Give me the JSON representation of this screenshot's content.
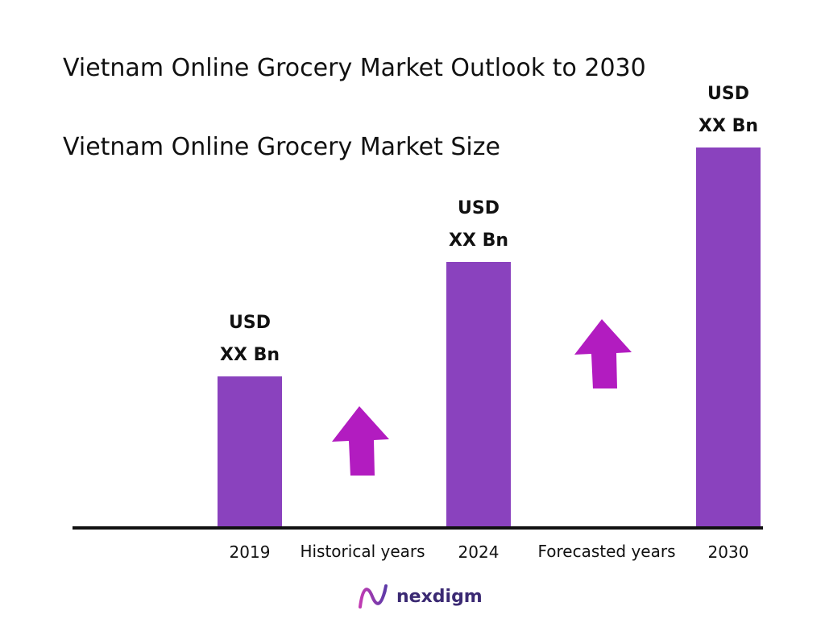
{
  "chart_data": {
    "type": "bar",
    "title": "Vietnam Online Grocery Market Outlook to 2030",
    "subtitle": "Vietnam Online Grocery Market Size",
    "categories": [
      "2019",
      "2024",
      "2030"
    ],
    "values": [
      2.5,
      4.4,
      6.3
    ],
    "value_labels": [
      {
        "line1": "USD",
        "line2": "XX Bn"
      },
      {
        "line1": "USD",
        "line2": "XX Bn"
      },
      {
        "line1": "USD",
        "line2": "XX Bn"
      }
    ],
    "ylim": [
      0,
      6.3
    ],
    "grid": false,
    "period_labels": [
      "Historical years",
      "Forecasted years"
    ],
    "bar_color": "#8a42be",
    "arrow_color": "#b21cc0"
  },
  "logo": {
    "text": "nexdigm",
    "icon": "nexdigm-wave-logo-icon"
  }
}
